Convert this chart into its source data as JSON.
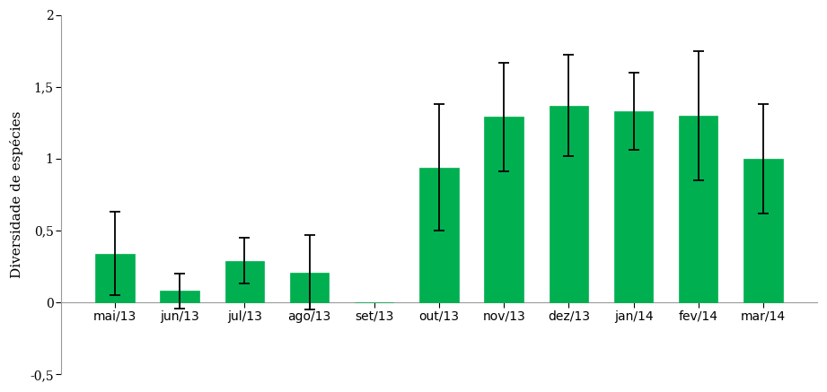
{
  "categories": [
    "mai/13",
    "jun/13",
    "jul/13",
    "ago/13",
    "set/13",
    "out/13",
    "nov/13",
    "dez/13",
    "jan/14",
    "fev/14",
    "mar/14"
  ],
  "values": [
    0.34,
    0.08,
    0.29,
    0.21,
    0.0,
    0.94,
    1.29,
    1.37,
    1.33,
    1.3,
    1.0
  ],
  "errors": [
    0.29,
    0.12,
    0.16,
    0.26,
    0.0,
    0.44,
    0.38,
    0.35,
    0.27,
    0.45,
    0.38
  ],
  "bar_color": "#00b050",
  "edge_color": "#00b050",
  "error_color": "black",
  "ylabel": "Diversidade de espécies",
  "ylim": [
    -0.5,
    2.0
  ],
  "yticks": [
    -0.5,
    0.0,
    0.5,
    1.0,
    1.5,
    2.0
  ],
  "ytick_labels": [
    "-0,5",
    "0",
    "0,5",
    "1",
    "1,5",
    "2"
  ],
  "background_color": "#ffffff",
  "bar_width": 0.6,
  "ylabel_fontsize": 11,
  "tick_fontsize": 10,
  "spine_color": "#999999"
}
